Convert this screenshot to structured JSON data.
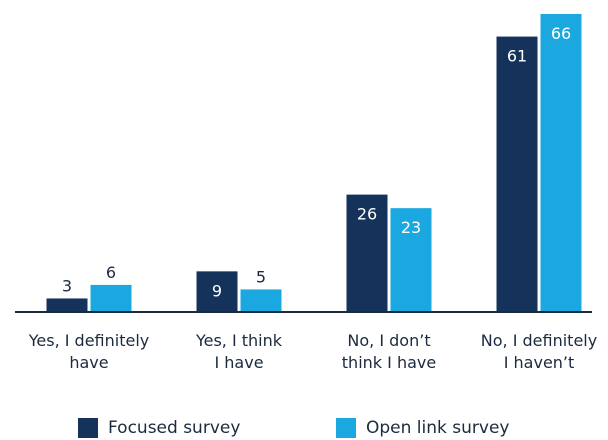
{
  "chart_data": {
    "type": "bar",
    "categories": [
      [
        "Yes, I definitely",
        "have"
      ],
      [
        "Yes, I think",
        "I have"
      ],
      [
        "No, I don’t",
        "think I have"
      ],
      [
        "No, I definitely",
        "I haven’t"
      ]
    ],
    "series": [
      {
        "name": "Focused survey",
        "values": [
          3,
          9,
          26,
          61
        ],
        "color": "#14325a"
      },
      {
        "name": "Open link survey",
        "values": [
          6,
          5,
          23,
          66
        ],
        "color": "#1ba8e0"
      }
    ],
    "ylim": [
      0,
      70
    ],
    "grid": false,
    "legend_position": "bottom"
  }
}
